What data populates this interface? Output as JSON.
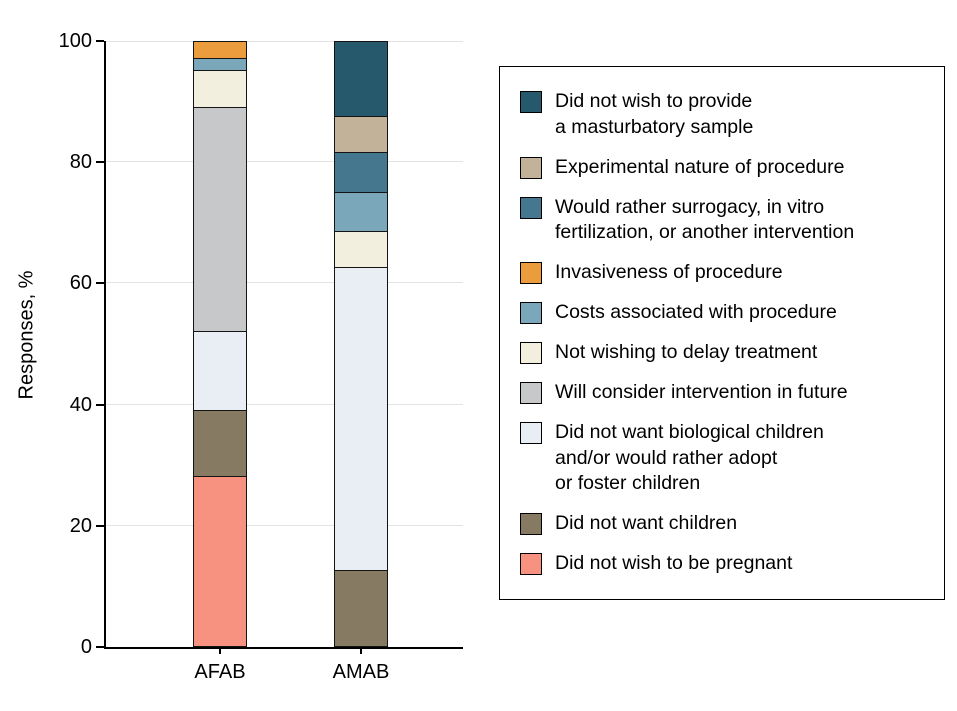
{
  "chart_data": {
    "type": "bar",
    "subtype": "stacked-vertical",
    "title": "",
    "ylabel": "Responses, %",
    "xlabel": "",
    "ylim": [
      0,
      100
    ],
    "yticks": [
      0,
      20,
      40,
      60,
      80,
      100
    ],
    "grid": "horizontal",
    "legend_position": "right",
    "categories": [
      "AFAB",
      "AMAB"
    ],
    "series": [
      {
        "key": "masturbatory-sample",
        "label": "Did not wish to provide\na masturbatory sample",
        "color": "#27596d",
        "values": [
          0,
          12.5
        ]
      },
      {
        "key": "experimental-nature",
        "label": "Experimental nature of procedure",
        "color": "#c2b29a",
        "values": [
          0,
          6
        ]
      },
      {
        "key": "surrogacy-ivf",
        "label": "Would rather surrogacy, in vitro\nfertilization, or another intervention",
        "color": "#45788e",
        "values": [
          0,
          6.5
        ]
      },
      {
        "key": "invasiveness",
        "label": "Invasiveness of procedure",
        "color": "#eb9c3d",
        "values": [
          3,
          0
        ]
      },
      {
        "key": "costs",
        "label": "Costs associated with procedure",
        "color": "#7aa7ba",
        "values": [
          2,
          6.5
        ]
      },
      {
        "key": "delay-treatment",
        "label": "Not wishing to delay treatment",
        "color": "#f2efdf",
        "values": [
          6,
          6
        ]
      },
      {
        "key": "consider-future",
        "label": "Will consider intervention in future",
        "color": "#c7c8c9",
        "values": [
          37,
          0
        ]
      },
      {
        "key": "no-biological-children",
        "label": "Did not want biological children\nand/or would rather adopt\nor foster children",
        "color": "#e8eef3",
        "values": [
          13,
          50
        ]
      },
      {
        "key": "no-children",
        "label": "Did not want children",
        "color": "#867a63",
        "values": [
          11,
          12.5
        ]
      },
      {
        "key": "not-pregnant",
        "label": "Did not wish to be pregnant",
        "color": "#f6927f",
        "values": [
          28,
          0
        ]
      }
    ]
  }
}
